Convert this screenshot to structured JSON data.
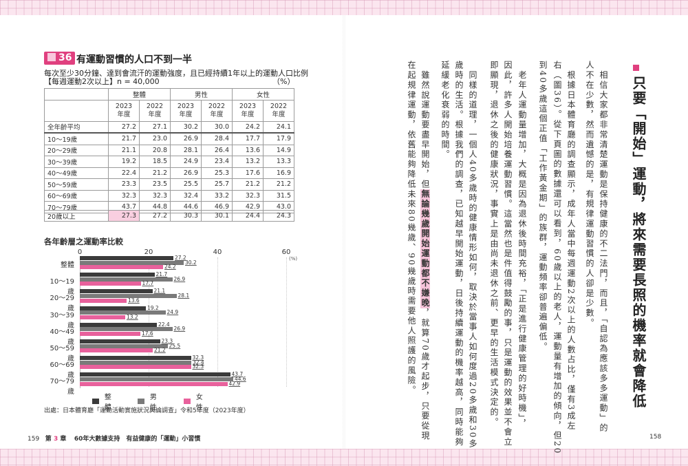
{
  "left_page": {
    "figure": {
      "label": "36",
      "title": "有運動習慣的人口不到一半",
      "subtitle": "每次至少30分鐘、達到會流汗的運動強度，且已經持續1年以上的運動人口比例",
      "subtitle2": "【每週運動2次以上】n = 40,000",
      "unit": "（%）"
    },
    "table": {
      "group_headers": [
        "整體",
        "男性",
        "女性"
      ],
      "year_headers": [
        "2023\n年度",
        "2022\n年度",
        "2023\n年度",
        "2022\n年度",
        "2023\n年度",
        "2022\n年度"
      ],
      "rows": [
        {
          "label": "全年齡平均",
          "values": [
            "27.2",
            "27.1",
            "30.2",
            "30.0",
            "24.2",
            "24.1"
          ]
        },
        {
          "label": "10～19歲",
          "values": [
            "21.7",
            "23.0",
            "26.9",
            "28.4",
            "17.7",
            "17.9"
          ]
        },
        {
          "label": "20～29歲",
          "values": [
            "21.1",
            "20.8",
            "28.1",
            "26.4",
            "13.6",
            "14.9"
          ]
        },
        {
          "label": "30～39歲",
          "values": [
            "19.2",
            "18.5",
            "24.9",
            "23.4",
            "13.2",
            "13.3"
          ]
        },
        {
          "label": "40～49歲",
          "values": [
            "22.4",
            "21.2",
            "26.9",
            "25.3",
            "17.6",
            "16.9"
          ]
        },
        {
          "label": "50～59歲",
          "values": [
            "23.3",
            "23.5",
            "25.5",
            "25.7",
            "21.2",
            "21.2"
          ]
        },
        {
          "label": "60～69歲",
          "values": [
            "32.3",
            "32.3",
            "32.4",
            "33.2",
            "32.3",
            "31.5"
          ]
        },
        {
          "label": "70～79歲",
          "values": [
            "43.7",
            "44.8",
            "44.6",
            "46.9",
            "42.9",
            "43.0"
          ]
        }
      ],
      "footer_row": {
        "label": "20歲以上",
        "values": [
          "27.3",
          "27.2",
          "30.3",
          "30.1",
          "24.4",
          "24.3"
        ]
      }
    },
    "source": "出處：日本體育廳「運動活動實施狀況輿論調查」令和5年度（2023年度）",
    "footer": {
      "page_number": "159",
      "chapter_prefix": "第",
      "chapter_number": "3",
      "chapter_suffix": "章",
      "chapter_title": "60年大數據支持　有益健康的「運動」小習慣"
    }
  },
  "chart_data": {
    "type": "bar",
    "orientation": "horizontal",
    "title": "各年齡層之運動率比較",
    "categories": [
      "整體",
      "10～19歲",
      "20～29歲",
      "30～39歲",
      "40～49歲",
      "50～59歲",
      "60～69歲",
      "70～79歲"
    ],
    "series": [
      {
        "name": "整體",
        "color": "#3b3b3b",
        "values": [
          27.2,
          21.7,
          21.1,
          19.2,
          22.4,
          23.3,
          32.3,
          43.7
        ]
      },
      {
        "name": "男性",
        "color": "#7a7a7a",
        "values": [
          30.2,
          26.9,
          28.1,
          24.9,
          26.9,
          25.5,
          32.4,
          44.6
        ]
      },
      {
        "name": "女性",
        "color": "#e8619c",
        "values": [
          24.2,
          17.7,
          13.6,
          13.2,
          17.6,
          21.2,
          32.3,
          42.9
        ]
      }
    ],
    "xticks": [
      "0",
      "20",
      "40",
      "60"
    ],
    "xunit": "(%)",
    "xlim": [
      0,
      60
    ],
    "grid": "dotted vertical",
    "legend_position": "bottom"
  },
  "right_page": {
    "heading": "只要「開始」運動，將來需要長照的機率就會降低",
    "accent_color": "#e0407f",
    "columns": [
      "　相信大家都非常清楚運動是保持健康的不二法門，而且，「自認為應該多多運動」的",
      "人不在少數，然而遺憾的是，有規律運動習慣的人卻是少數。",
      "　根據日本體育廳的調查顯示，成年人當中每週運動2次以上的人數占比，僅有3成左",
      "右（圖36）。從下頁圖的數據還可以看到，60歲以上的老人，運動量有增加的傾向，但20",
      "到40多歲這個正值「工作黃金期」的族群，運動頻率卻普遍偏低。",
      "　老年人運動量增加，大概是因為退休後時間充裕，「正是進行健康管理的好時機」，",
      "因此，許多人開始培養運動習慣。這當然也是件值得鼓勵的事，只是運動的效果並不會立",
      "即顯現，退休之後的健康狀況，事實上是由尚未退休之前、更早的生活模式決定的。",
      "　同樣的道理，一個人40多歲時的健康情形如何，取決於當事人如何度過20多歲和30多",
      "歲時的生活。根據我們的調查，已知越早開始運動，日後持續運動的機率越高，同時能夠",
      "延緩老化衰弱的時間。",
      {
        "before": "　雖然說運動要盡早開始，但",
        "highlight": "無論幾歲開始運動都不嫌晚",
        "after": "，就算70歲才起步，只要從現"
      },
      "在起規律運動，依舊能夠降低未來80幾歲、90幾歲時需要他人照護的風險。"
    ],
    "footer": {
      "page_number": "158"
    }
  }
}
